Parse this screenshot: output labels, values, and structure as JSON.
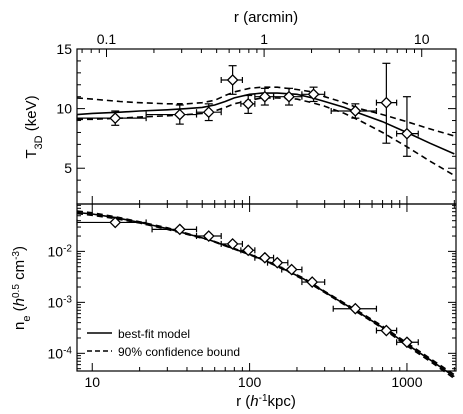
{
  "chart_data": [
    {
      "type": "scatter",
      "panel": "top",
      "xlabel": "r (arcmin)",
      "xlabel_position": "top",
      "xscale": "log",
      "xlim": [
        0.065,
        16.5
      ],
      "top_tick_labels": [
        {
          "v": 0.1,
          "label": "0.1"
        },
        {
          "v": 1,
          "label": "1"
        },
        {
          "v": 10,
          "label": "10"
        }
      ],
      "ylabel": {
        "main": "T",
        "sub": "3D",
        "unit": " (keV)"
      },
      "yscale": "linear",
      "ylim": [
        2,
        15
      ],
      "y_tick_labels": [
        {
          "v": 5,
          "label": "5"
        },
        {
          "v": 10,
          "label": "10"
        },
        {
          "v": 15,
          "label": "15"
        }
      ],
      "series": [
        {
          "style": "diamond-errorbars",
          "points": [
            {
              "x": 14,
              "y": 9.2,
              "xlo": 8,
              "xhi": 22,
              "ylo": 8.6,
              "yhi": 9.8
            },
            {
              "x": 36,
              "y": 9.5,
              "xlo": 22,
              "xhi": 46,
              "ylo": 8.7,
              "yhi": 10.3
            },
            {
              "x": 55,
              "y": 9.7,
              "xlo": 46,
              "xhi": 66,
              "ylo": 9.0,
              "yhi": 10.4
            },
            {
              "x": 78,
              "y": 12.4,
              "xlo": 66,
              "xhi": 90,
              "ylo": 11.2,
              "yhi": 13.6
            },
            {
              "x": 98,
              "y": 10.4,
              "xlo": 88,
              "xhi": 108,
              "ylo": 9.6,
              "yhi": 11.1
            },
            {
              "x": 125,
              "y": 11.0,
              "xlo": 108,
              "xhi": 142,
              "ylo": 10.3,
              "yhi": 11.7
            },
            {
              "x": 178,
              "y": 11.0,
              "xlo": 142,
              "xhi": 215,
              "ylo": 10.3,
              "yhi": 11.7
            },
            {
              "x": 255,
              "y": 11.2,
              "xlo": 215,
              "xhi": 300,
              "ylo": 10.6,
              "yhi": 11.8
            },
            {
              "x": 470,
              "y": 9.8,
              "xlo": 330,
              "xhi": 640,
              "ylo": 9.2,
              "yhi": 10.4
            },
            {
              "x": 740,
              "y": 10.5,
              "xlo": 640,
              "xhi": 860,
              "ylo": 7.1,
              "yhi": 13.8
            },
            {
              "x": 1000,
              "y": 7.9,
              "xlo": 860,
              "xhi": 1180,
              "ylo": 6.0,
              "yhi": 11.0
            }
          ]
        },
        {
          "style": "solid",
          "x": [
            8,
            10,
            15,
            20,
            30,
            40,
            50,
            60,
            70,
            80,
            100,
            120,
            150,
            200,
            250,
            300,
            400,
            500,
            700,
            1000,
            1400,
            2000
          ],
          "y": [
            9.5,
            9.6,
            9.7,
            9.8,
            9.9,
            10.0,
            10.1,
            10.3,
            10.6,
            10.9,
            11.2,
            11.3,
            11.3,
            11.2,
            10.9,
            10.6,
            10.1,
            9.6,
            8.9,
            8.0,
            7.1,
            6.2
          ]
        },
        {
          "style": "dashed",
          "x": [
            8,
            10,
            15,
            20,
            30,
            40,
            50,
            60,
            70,
            80,
            100,
            120,
            150,
            200,
            250,
            300,
            400,
            500,
            700,
            1000,
            1400,
            2000
          ],
          "y": [
            10.9,
            10.8,
            10.6,
            10.5,
            10.4,
            10.4,
            10.5,
            10.7,
            11.1,
            11.4,
            11.7,
            11.8,
            11.8,
            11.6,
            11.4,
            11.0,
            10.5,
            10.0,
            9.5,
            8.9,
            8.3,
            7.7
          ]
        },
        {
          "style": "dashed",
          "x": [
            8,
            10,
            15,
            20,
            30,
            40,
            50,
            60,
            70,
            80,
            100,
            120,
            150,
            200,
            250,
            300,
            400,
            500,
            700,
            1000,
            1400,
            2000
          ],
          "y": [
            9.1,
            9.1,
            9.2,
            9.3,
            9.4,
            9.5,
            9.6,
            9.8,
            10.1,
            10.4,
            10.7,
            10.9,
            10.9,
            10.8,
            10.5,
            10.2,
            9.6,
            9.0,
            8.0,
            6.8,
            5.6,
            4.4
          ]
        }
      ]
    },
    {
      "type": "scatter",
      "panel": "bottom",
      "xlabel": {
        "pre": "r (",
        "base": "h",
        "sup": "-1",
        "post": "kpc)"
      },
      "xscale": "log",
      "xlim": [
        8,
        2050
      ],
      "x_tick_labels": [
        {
          "v": 10,
          "label": "10"
        },
        {
          "v": 100,
          "label": "100"
        },
        {
          "v": 1000,
          "label": "1000"
        }
      ],
      "ylabel": {
        "pre": "n",
        "sub": "e",
        "open": " (",
        "base": "h",
        "sup1": "0.5",
        "mid": " cm",
        "sup2": "-3",
        "close": ")"
      },
      "yscale": "log",
      "ylim": [
        4.5e-05,
        0.085
      ],
      "y_tick_labels": [
        {
          "v": 0.0001,
          "base": "10",
          "exp": "-4"
        },
        {
          "v": 0.001,
          "base": "10",
          "exp": "-3"
        },
        {
          "v": 0.01,
          "base": "10",
          "exp": "-2"
        }
      ],
      "series": [
        {
          "style": "diamond-errorbars",
          "points": [
            {
              "x": 14,
              "y": 0.037,
              "xlo": 8,
              "xhi": 22
            },
            {
              "x": 36,
              "y": 0.027,
              "xlo": 24,
              "xhi": 46
            },
            {
              "x": 55,
              "y": 0.02,
              "xlo": 46,
              "xhi": 66
            },
            {
              "x": 78,
              "y": 0.014,
              "xlo": 66,
              "xhi": 90
            },
            {
              "x": 98,
              "y": 0.0105,
              "xlo": 88,
              "xhi": 108
            },
            {
              "x": 125,
              "y": 0.0075,
              "xlo": 108,
              "xhi": 142
            },
            {
              "x": 150,
              "y": 0.006,
              "xlo": 130,
              "xhi": 175
            },
            {
              "x": 185,
              "y": 0.0044,
              "xlo": 160,
              "xhi": 215
            },
            {
              "x": 250,
              "y": 0.0025,
              "xlo": 215,
              "xhi": 300
            },
            {
              "x": 470,
              "y": 0.00075,
              "xlo": 340,
              "xhi": 640
            },
            {
              "x": 740,
              "y": 0.00028,
              "xlo": 640,
              "xhi": 860
            },
            {
              "x": 1000,
              "y": 0.000165,
              "xlo": 860,
              "xhi": 1180
            }
          ]
        },
        {
          "style": "solid",
          "x": [
            8,
            10,
            14,
            20,
            30,
            40,
            55,
            70,
            100,
            130,
            170,
            220,
            300,
            400,
            500,
            700,
            1000,
            1400,
            2000
          ],
          "y": [
            0.058,
            0.054,
            0.046,
            0.037,
            0.028,
            0.022,
            0.017,
            0.013,
            0.0087,
            0.0063,
            0.0043,
            0.0029,
            0.0016,
            0.00093,
            0.00062,
            0.00032,
            0.00015,
            7.5e-05,
            3.5e-05
          ]
        },
        {
          "style": "dashed",
          "x": [
            8,
            10,
            14,
            20,
            30,
            40,
            55,
            70,
            100,
            130,
            170,
            220,
            300,
            400,
            500,
            700,
            1000,
            1400,
            2000
          ],
          "y": [
            0.062,
            0.057,
            0.048,
            0.038,
            0.029,
            0.0225,
            0.0172,
            0.0132,
            0.0088,
            0.0064,
            0.0044,
            0.003,
            0.00165,
            0.00097,
            0.00065,
            0.00034,
            0.00016,
            8e-05,
            3.8e-05
          ]
        },
        {
          "style": "dashed",
          "x": [
            8,
            10,
            14,
            20,
            30,
            40,
            55,
            70,
            100,
            130,
            170,
            220,
            300,
            400,
            500,
            700,
            1000,
            1400,
            2000
          ],
          "y": [
            0.055,
            0.051,
            0.044,
            0.036,
            0.027,
            0.0215,
            0.0168,
            0.0128,
            0.0086,
            0.0062,
            0.0042,
            0.0028,
            0.00155,
            0.0009,
            0.0006,
            0.00031,
            0.00014,
            7e-05,
            3.2e-05
          ]
        }
      ],
      "legend": {
        "placement": "bottom-left",
        "entries": [
          {
            "style": "solid",
            "label": "best-fit model"
          },
          {
            "style": "dashed",
            "label": "90% confidence bound"
          }
        ]
      }
    }
  ]
}
